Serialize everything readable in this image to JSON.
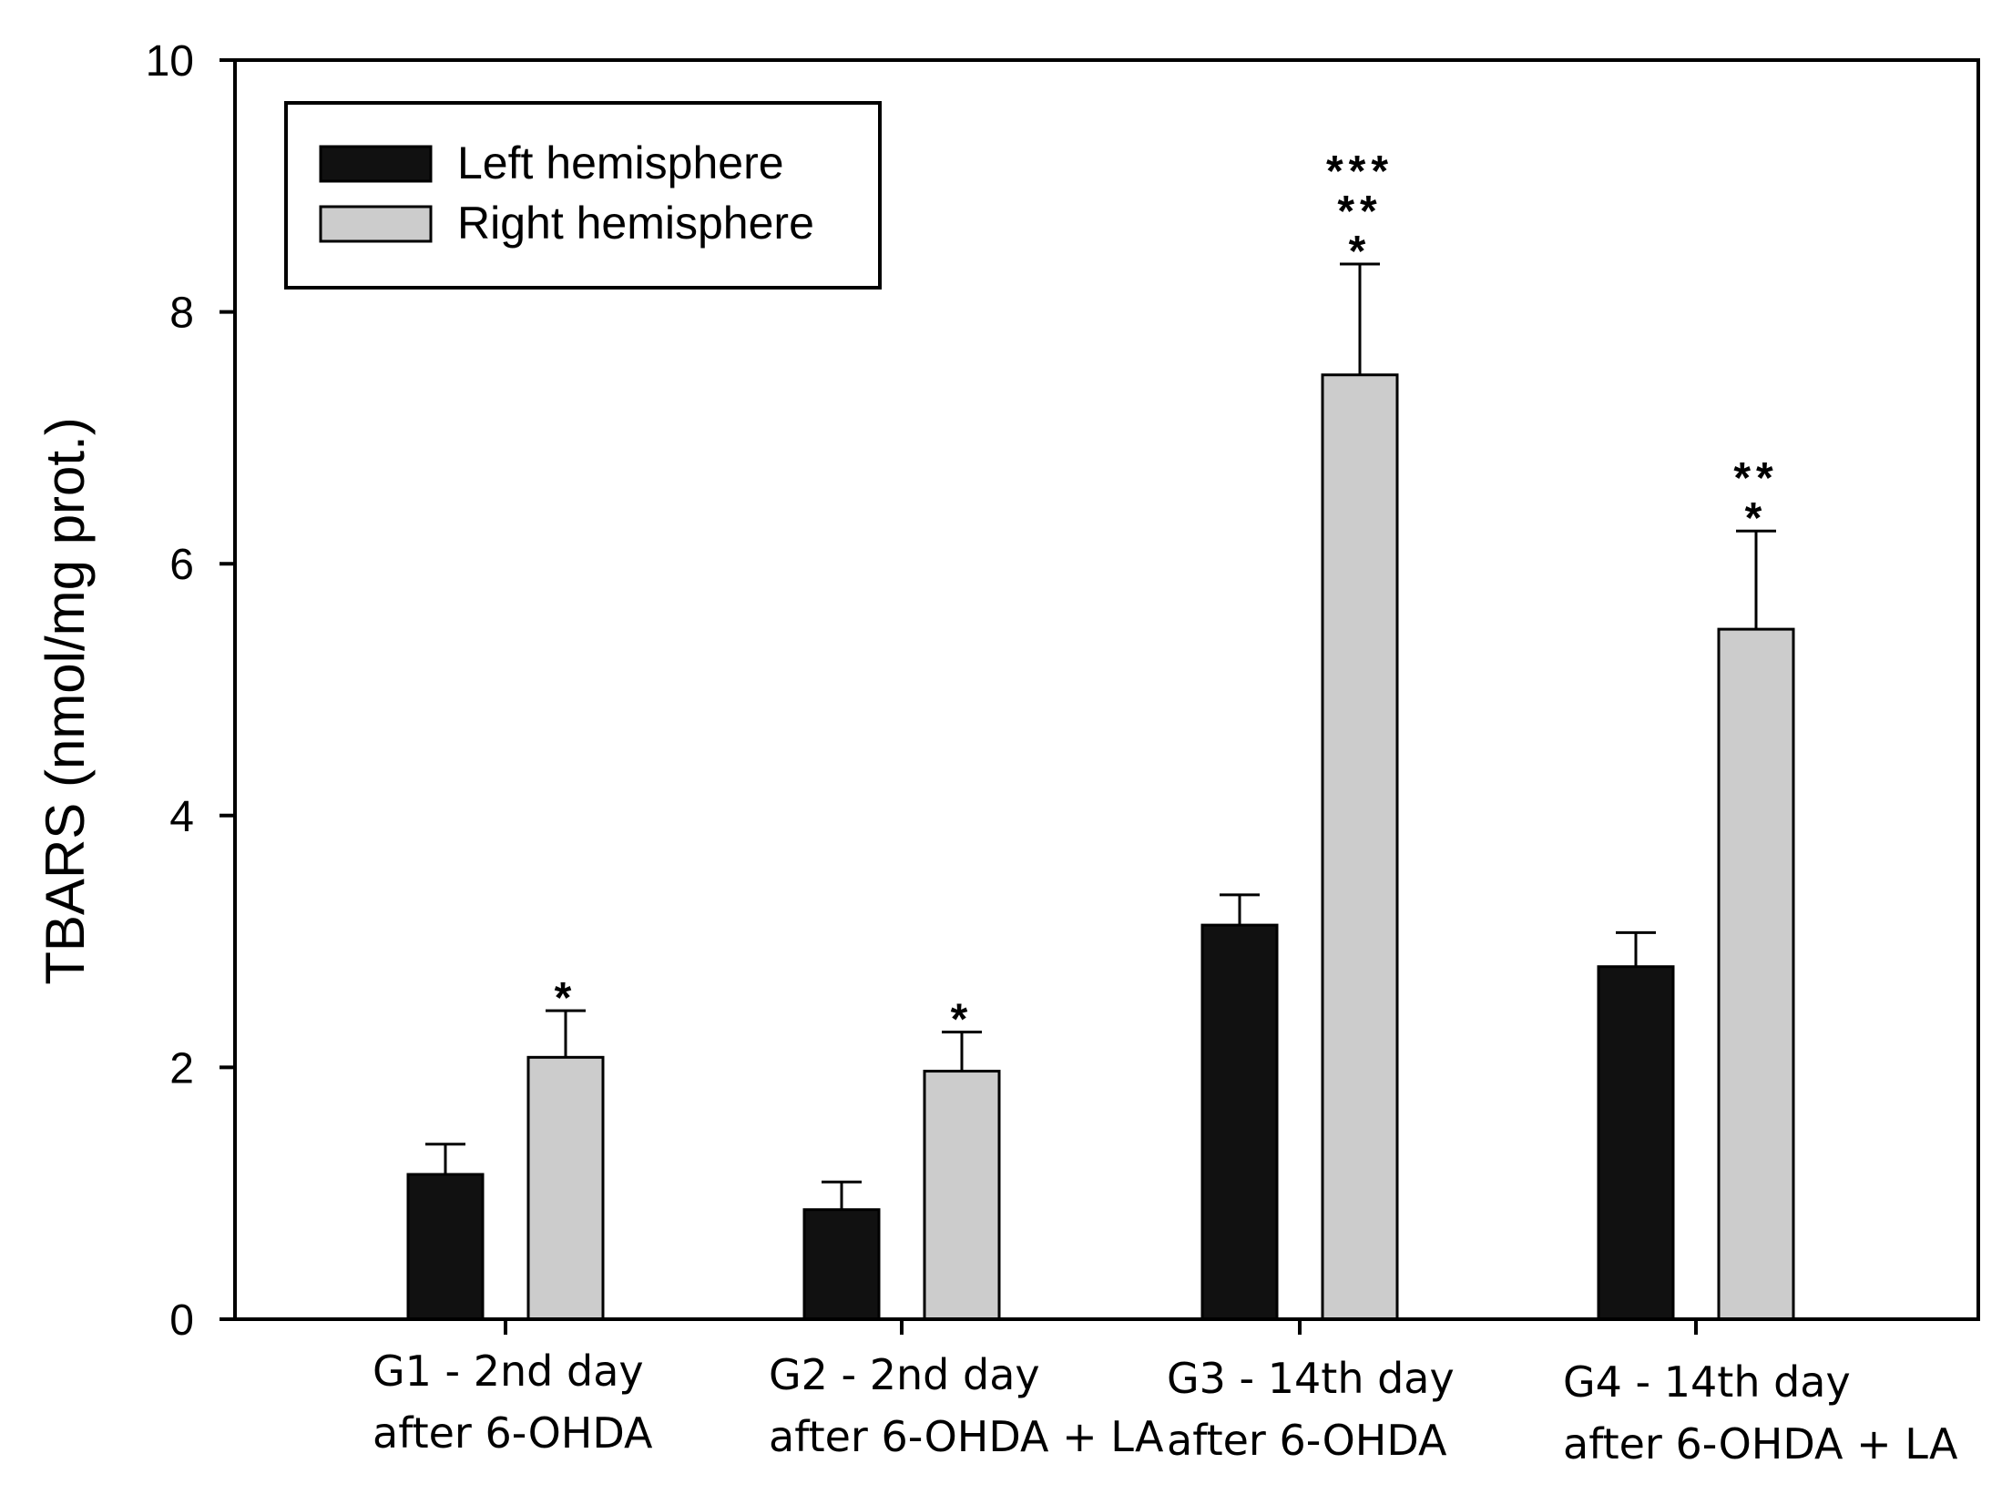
{
  "chart_data": {
    "type": "bar",
    "title": "",
    "xlabel": "",
    "ylabel": "TBARS (nmol/mg prot.)",
    "ylim": [
      0,
      10
    ],
    "yticks": [
      0,
      2,
      4,
      6,
      8,
      10
    ],
    "grid": false,
    "legend_position": "top-left",
    "categories": [
      {
        "line1": "G1 - 2nd day",
        "line2": "after 6-OHDA"
      },
      {
        "line1": "G2 - 2nd day",
        "line2": "after 6-OHDA + LA"
      },
      {
        "line1": "G3 - 14th day",
        "line2": "after 6-OHDA"
      },
      {
        "line1": "G4 - 14th day",
        "line2": "after 6-OHDA + LA"
      }
    ],
    "series": [
      {
        "name": "Left hemisphere",
        "color": "#111111",
        "values": [
          1.15,
          0.87,
          3.13,
          2.8
        ],
        "errors": [
          0.24,
          0.22,
          0.24,
          0.27
        ],
        "annotations": [
          [],
          [],
          [],
          []
        ]
      },
      {
        "name": "Right hemisphere",
        "color": "#cccccc",
        "values": [
          2.08,
          1.97,
          7.5,
          5.48
        ],
        "errors": [
          0.37,
          0.31,
          0.88,
          0.78
        ],
        "annotations": [
          [
            "*"
          ],
          [
            "*"
          ],
          [
            "***",
            "**",
            "*"
          ],
          [
            "**",
            "*"
          ]
        ]
      }
    ]
  }
}
